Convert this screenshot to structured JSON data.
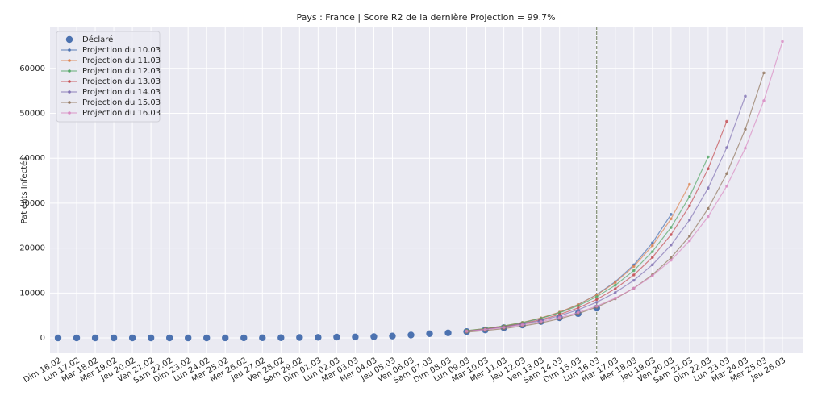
{
  "chart_data": {
    "type": "line",
    "title": "Pays : France | Score R2 de la dernière Projection = 99.7%",
    "y_label": "Patients Infectés",
    "categories": [
      "Dim 16.02",
      "Lun 17.02",
      "Mar 18.02",
      "Mer 19.02",
      "Jeu 20.02",
      "Ven 21.02",
      "Sam 22.02",
      "Dim 23.02",
      "Lun 24.02",
      "Mar 25.02",
      "Mer 26.02",
      "Jeu 27.02",
      "Ven 28.02",
      "Sam 29.02",
      "Dim 01.03",
      "Lun 02.03",
      "Mar 03.03",
      "Mer 04.03",
      "Jeu 05.03",
      "Ven 06.03",
      "Sam 07.03",
      "Dim 08.03",
      "Lun 09.03",
      "Mar 10.03",
      "Mer 11.03",
      "Jeu 12.03",
      "Ven 13.03",
      "Sam 14.03",
      "Dim 15.03",
      "Lun 16.03",
      "Mar 17.03",
      "Mer 18.03",
      "Jeu 19.03",
      "Ven 20.03",
      "Sam 21.03",
      "Dim 22.03",
      "Lun 23.03",
      "Mar 24.03",
      "Mer 25.03",
      "Jeu 26.03"
    ],
    "series": [
      {
        "name": "Déclaré",
        "color": "#4c72b0",
        "style": "markers",
        "values": [
          12,
          12,
          12,
          12,
          12,
          12,
          12,
          12,
          12,
          14,
          18,
          38,
          57,
          100,
          130,
          191,
          212,
          285,
          423,
          653,
          949,
          1126,
          1412,
          1784,
          2281,
          2876,
          3661,
          4499,
          5423,
          6633,
          null,
          null,
          null,
          null,
          null,
          null,
          null,
          null,
          null,
          null
        ]
      },
      {
        "name": "Projection du 10.03",
        "color": "#4c72b0",
        "style": "line",
        "values": [
          null,
          null,
          null,
          null,
          null,
          null,
          null,
          null,
          null,
          null,
          null,
          null,
          null,
          null,
          null,
          null,
          null,
          null,
          null,
          null,
          null,
          null,
          1535,
          1995,
          2590,
          3370,
          4380,
          5700,
          7410,
          9630,
          12520,
          16270,
          21150,
          27500,
          null,
          null,
          null,
          null,
          null,
          null
        ]
      },
      {
        "name": "Projection du 11.03",
        "color": "#dd8452",
        "style": "line",
        "values": [
          null,
          null,
          null,
          null,
          null,
          null,
          null,
          null,
          null,
          null,
          null,
          null,
          null,
          null,
          null,
          null,
          null,
          null,
          null,
          null,
          null,
          null,
          1610,
          2080,
          2680,
          3460,
          4460,
          5750,
          7420,
          9570,
          12350,
          15930,
          20550,
          26510,
          34200,
          null,
          null,
          null,
          null,
          null
        ]
      },
      {
        "name": "Projection du 12.03",
        "color": "#55a868",
        "style": "line",
        "values": [
          null,
          null,
          null,
          null,
          null,
          null,
          null,
          null,
          null,
          null,
          null,
          null,
          null,
          null,
          null,
          null,
          null,
          null,
          null,
          null,
          null,
          null,
          1630,
          2080,
          2670,
          3410,
          4370,
          5590,
          7160,
          9160,
          11730,
          15010,
          19220,
          24600,
          31480,
          40300,
          null,
          null,
          null,
          null
        ]
      },
      {
        "name": "Projection du 13.03",
        "color": "#c44e52",
        "style": "line",
        "values": [
          null,
          null,
          null,
          null,
          null,
          null,
          null,
          null,
          null,
          null,
          null,
          null,
          null,
          null,
          null,
          null,
          null,
          null,
          null,
          null,
          null,
          null,
          1520,
          1950,
          2490,
          3190,
          4080,
          5220,
          6690,
          8560,
          10960,
          14030,
          17950,
          22980,
          29420,
          37660,
          48200,
          null,
          null,
          null
        ]
      },
      {
        "name": "Projection du 14.03",
        "color": "#8172b3",
        "style": "line",
        "values": [
          null,
          null,
          null,
          null,
          null,
          null,
          null,
          null,
          null,
          null,
          null,
          null,
          null,
          null,
          null,
          null,
          null,
          null,
          null,
          null,
          null,
          null,
          1490,
          1890,
          2410,
          3060,
          3880,
          4930,
          6260,
          7950,
          10100,
          12820,
          16290,
          20680,
          26270,
          33360,
          42360,
          53800,
          null,
          null
        ]
      },
      {
        "name": "Projection du 15.03",
        "color": "#937860",
        "style": "line",
        "values": [
          null,
          null,
          null,
          null,
          null,
          null,
          null,
          null,
          null,
          null,
          null,
          null,
          null,
          null,
          null,
          null,
          null,
          null,
          null,
          null,
          null,
          null,
          1290,
          1640,
          2080,
          2640,
          3350,
          4260,
          5410,
          6870,
          8720,
          11070,
          14060,
          17860,
          22680,
          28800,
          36580,
          46460,
          59000,
          null
        ]
      },
      {
        "name": "Projection du 16.03",
        "color": "#da8bc3",
        "style": "line",
        "values": [
          null,
          null,
          null,
          null,
          null,
          null,
          null,
          null,
          null,
          null,
          null,
          null,
          null,
          null,
          null,
          null,
          null,
          null,
          null,
          null,
          null,
          null,
          1490,
          1860,
          2320,
          2900,
          3630,
          4540,
          5670,
          7090,
          8860,
          11070,
          13840,
          17300,
          21630,
          27030,
          33790,
          42240,
          52800,
          66000
        ]
      }
    ],
    "ylim": [
      -3400,
      69300
    ],
    "yticks": [
      0,
      10000,
      20000,
      30000,
      40000,
      50000,
      60000
    ],
    "vline_index": 29,
    "grid": true,
    "legend": "upper left"
  }
}
